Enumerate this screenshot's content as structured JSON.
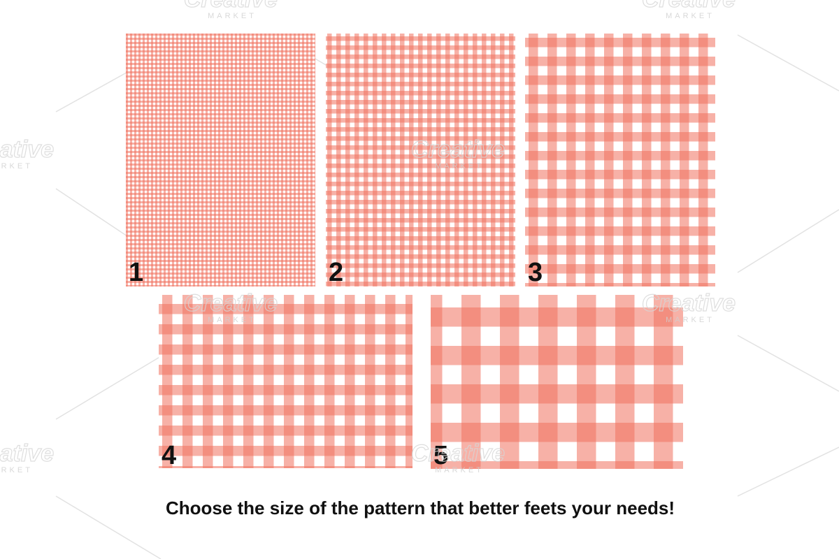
{
  "panels": [
    {
      "label": "1"
    },
    {
      "label": "2"
    },
    {
      "label": "3"
    },
    {
      "label": "4"
    },
    {
      "label": "5"
    }
  ],
  "caption": "Choose the size of the pattern that better feets your needs!",
  "watermark": {
    "title": "Creative",
    "subtitle": "MARKET"
  }
}
